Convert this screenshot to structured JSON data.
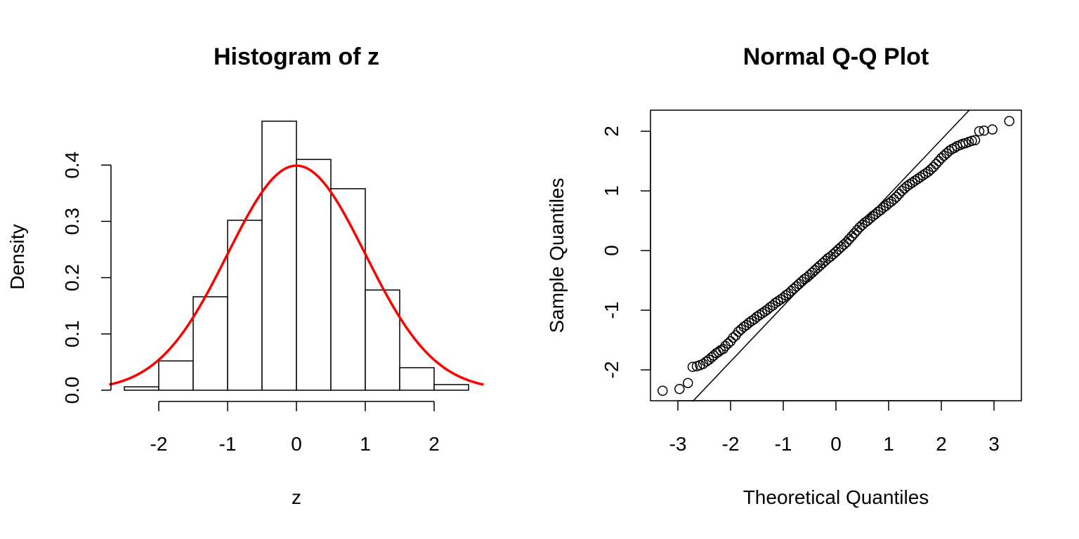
{
  "chart_data": [
    {
      "type": "histogram",
      "title": "Histogram of z",
      "xlabel": "z",
      "ylabel": "Density",
      "xlim": [
        -2.72,
        2.72
      ],
      "ylim": [
        0,
        0.497
      ],
      "x_ticks": [
        "-2",
        "-1",
        "0",
        "1",
        "2"
      ],
      "y_ticks": [
        "0.0",
        "0.1",
        "0.2",
        "0.3",
        "0.4"
      ],
      "bins": [
        {
          "from": -2.5,
          "to": -2.0,
          "density": 0.006
        },
        {
          "from": -2.0,
          "to": -1.5,
          "density": 0.052
        },
        {
          "from": -1.5,
          "to": -1.0,
          "density": 0.166
        },
        {
          "from": -1.0,
          "to": -0.5,
          "density": 0.302
        },
        {
          "from": -0.5,
          "to": 0.0,
          "density": 0.478
        },
        {
          "from": 0.0,
          "to": 0.5,
          "density": 0.41
        },
        {
          "from": 0.5,
          "to": 1.0,
          "density": 0.358
        },
        {
          "from": 1.0,
          "to": 1.5,
          "density": 0.178
        },
        {
          "from": 1.5,
          "to": 2.0,
          "density": 0.04
        },
        {
          "from": 2.0,
          "to": 2.5,
          "density": 0.01
        }
      ],
      "overlay": {
        "type": "normal_density",
        "mean": 0,
        "sd": 1,
        "color": "#ff0000"
      },
      "grid": false
    },
    {
      "type": "scatter",
      "title": "Normal Q-Q Plot",
      "xlabel": "Theoretical Quantiles",
      "ylabel": "Sample Quantiles",
      "xlim": [
        -3.4,
        3.4
      ],
      "ylim": [
        -2.53,
        2.36
      ],
      "x_ticks": [
        "-3",
        "-2",
        "-1",
        "0",
        "1",
        "2",
        "3"
      ],
      "y_ticks": [
        "-2",
        "-1",
        "0",
        "1",
        "2"
      ],
      "reference_line": {
        "intercept": 0,
        "slope": 0.93
      },
      "series": [
        {
          "x": [
            -3.29,
            -2.97,
            -2.81,
            -2.72,
            -2.64,
            -2.58,
            -2.52,
            -2.46,
            -2.41,
            -2.36,
            -2.32,
            -2.27,
            -2.23,
            -2.19,
            -2.14,
            -2.1,
            -2.05,
            -2.0,
            -1.95,
            -1.9,
            -1.85,
            -1.8,
            -1.75,
            -1.7,
            -1.65,
            -1.6,
            -1.55,
            -1.5,
            -1.45,
            -1.4,
            -1.35,
            -1.3,
            -1.25,
            -1.2,
            -1.15,
            -1.1,
            -1.05,
            -1.0,
            -0.95,
            -0.9,
            -0.85,
            -0.8,
            -0.75,
            -0.7,
            -0.65,
            -0.6,
            -0.55,
            -0.5,
            -0.45,
            -0.4,
            -0.35,
            -0.3,
            -0.25,
            -0.2,
            -0.15,
            -0.1,
            -0.05,
            0.0,
            0.05,
            0.1,
            0.15,
            0.2,
            0.25,
            0.3,
            0.35,
            0.4,
            0.45,
            0.5,
            0.55,
            0.6,
            0.65,
            0.7,
            0.75,
            0.8,
            0.85,
            0.9,
            0.95,
            1.0,
            1.05,
            1.1,
            1.15,
            1.2,
            1.25,
            1.3,
            1.35,
            1.4,
            1.45,
            1.5,
            1.55,
            1.6,
            1.65,
            1.7,
            1.75,
            1.8,
            1.85,
            1.9,
            1.95,
            2.0,
            2.05,
            2.1,
            2.15,
            2.2,
            2.25,
            2.3,
            2.36,
            2.41,
            2.46,
            2.52,
            2.58,
            2.64,
            2.72,
            2.81,
            2.97,
            3.29
          ],
          "y": [
            -2.35,
            -2.32,
            -2.22,
            -1.95,
            -1.94,
            -1.92,
            -1.9,
            -1.86,
            -1.83,
            -1.79,
            -1.76,
            -1.72,
            -1.7,
            -1.67,
            -1.65,
            -1.6,
            -1.56,
            -1.52,
            -1.46,
            -1.42,
            -1.36,
            -1.32,
            -1.28,
            -1.25,
            -1.21,
            -1.18,
            -1.15,
            -1.11,
            -1.08,
            -1.05,
            -1.02,
            -0.99,
            -0.95,
            -0.92,
            -0.88,
            -0.85,
            -0.82,
            -0.79,
            -0.75,
            -0.72,
            -0.68,
            -0.64,
            -0.6,
            -0.56,
            -0.52,
            -0.48,
            -0.45,
            -0.41,
            -0.37,
            -0.33,
            -0.29,
            -0.25,
            -0.21,
            -0.17,
            -0.13,
            -0.1,
            -0.06,
            -0.02,
            0.02,
            0.06,
            0.1,
            0.14,
            0.19,
            0.24,
            0.29,
            0.34,
            0.39,
            0.43,
            0.47,
            0.5,
            0.54,
            0.58,
            0.61,
            0.65,
            0.68,
            0.72,
            0.75,
            0.79,
            0.82,
            0.86,
            0.9,
            0.95,
            1.0,
            1.04,
            1.08,
            1.11,
            1.14,
            1.17,
            1.2,
            1.23,
            1.26,
            1.29,
            1.32,
            1.36,
            1.4,
            1.45,
            1.5,
            1.55,
            1.59,
            1.63,
            1.67,
            1.7,
            1.72,
            1.75,
            1.77,
            1.79,
            1.8,
            1.82,
            1.84,
            1.85,
            2.0,
            2.01,
            2.03,
            2.17
          ]
        }
      ],
      "grid": false
    }
  ]
}
